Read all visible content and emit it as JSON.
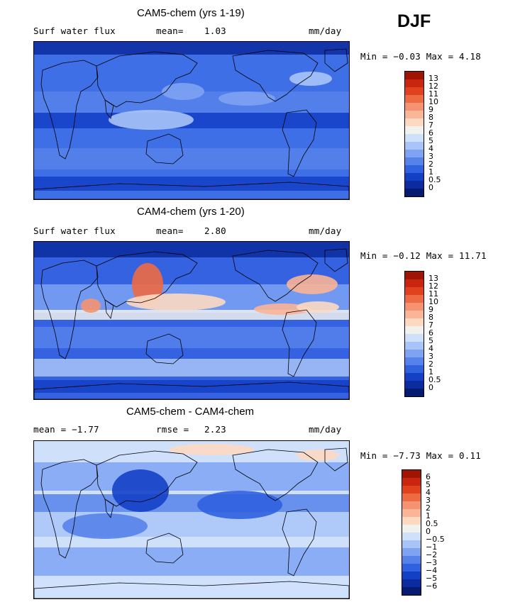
{
  "season": "DJF",
  "panels": [
    {
      "title": "CAM5-chem (yrs 1-19)",
      "left_label": "Surf water flux",
      "mid_label": "mean=",
      "mid_value": "1.03",
      "units": "mm/day",
      "minmax": "Min = −0.03 Max =   4.18",
      "levels": [
        "13",
        "12",
        "11",
        "10",
        "9",
        "8",
        "7",
        "6",
        "5",
        "4",
        "3",
        "2",
        "1",
        "0.5",
        "0"
      ],
      "colors": [
        "#a01404",
        "#c9250f",
        "#e0421e",
        "#ee6a43",
        "#f59271",
        "#fab496",
        "#fdd9c2",
        "#f1f1ee",
        "#cfe0fb",
        "#a9c4f8",
        "#7ea3f3",
        "#5683ea",
        "#3061df",
        "#1440c6",
        "#0c2b9e",
        "#061a72"
      ],
      "map_bg": "#3f6fe6"
    },
    {
      "title": "CAM4-chem (yrs 1-20)",
      "left_label": "Surf water flux",
      "mid_label": "mean=",
      "mid_value": "2.80",
      "units": "mm/day",
      "minmax": "Min = −0.12 Max =  11.71",
      "levels": [
        "13",
        "12",
        "11",
        "10",
        "9",
        "8",
        "7",
        "6",
        "5",
        "4",
        "3",
        "2",
        "1",
        "0.5",
        "0"
      ],
      "colors": [
        "#a01404",
        "#c9250f",
        "#e0421e",
        "#ee6a43",
        "#f59271",
        "#fab496",
        "#fdd9c2",
        "#f1f1ee",
        "#cfe0fb",
        "#a9c4f8",
        "#7ea3f3",
        "#5683ea",
        "#3061df",
        "#1440c6",
        "#0c2b9e",
        "#061a72"
      ],
      "map_bg": "#3462e0"
    },
    {
      "title": "CAM5-chem - CAM4-chem",
      "left_label": "mean =  −1.77",
      "mid_label": "rmse =",
      "mid_value": "2.23",
      "units": "mm/day",
      "minmax": "Min = −7.73 Max =   0.11",
      "levels": [
        "6",
        "5",
        "4",
        "3",
        "2",
        "1",
        "0.5",
        "0",
        "−0.5",
        "−1",
        "−2",
        "−3",
        "−4",
        "−5",
        "−6"
      ],
      "colors": [
        "#a01404",
        "#c9250f",
        "#e0421e",
        "#ee6a43",
        "#f59271",
        "#fab496",
        "#fdd9c2",
        "#f1f1ee",
        "#cfe0fb",
        "#a9c4f8",
        "#7ea3f3",
        "#5683ea",
        "#3061df",
        "#1440c6",
        "#0c2b9e",
        "#061a72"
      ],
      "map_bg": "#cfe0fb"
    }
  ]
}
